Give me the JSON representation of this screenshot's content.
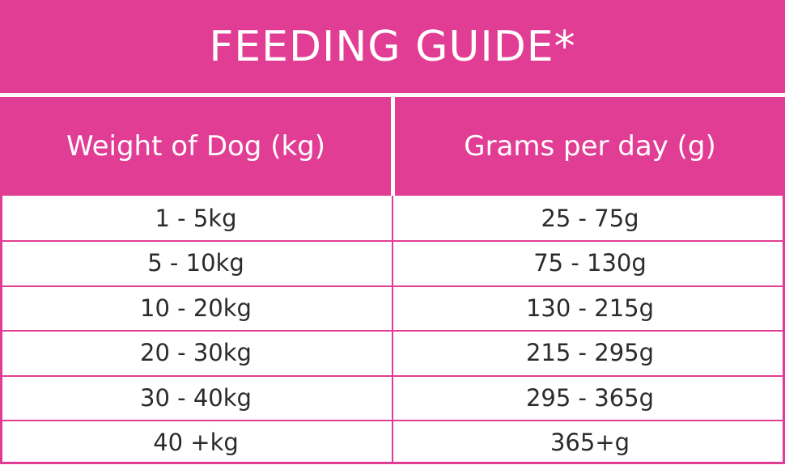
{
  "title": "FEEDING GUIDE*",
  "colors": {
    "accent": "#e23d94",
    "header_text": "#ffffff",
    "body_text": "#2b2b2b",
    "background": "#ffffff"
  },
  "table": {
    "headers": [
      "Weight of Dog (kg)",
      "Grams per day (g)"
    ],
    "rows": [
      [
        "1 - 5kg",
        "25 - 75g"
      ],
      [
        "5 - 10kg",
        "75 - 130g"
      ],
      [
        "10 - 20kg",
        "130 - 215g"
      ],
      [
        "20 - 30kg",
        "215 - 295g"
      ],
      [
        "30 - 40kg",
        "295 - 365g"
      ],
      [
        "40 +kg",
        "365+g"
      ]
    ]
  }
}
